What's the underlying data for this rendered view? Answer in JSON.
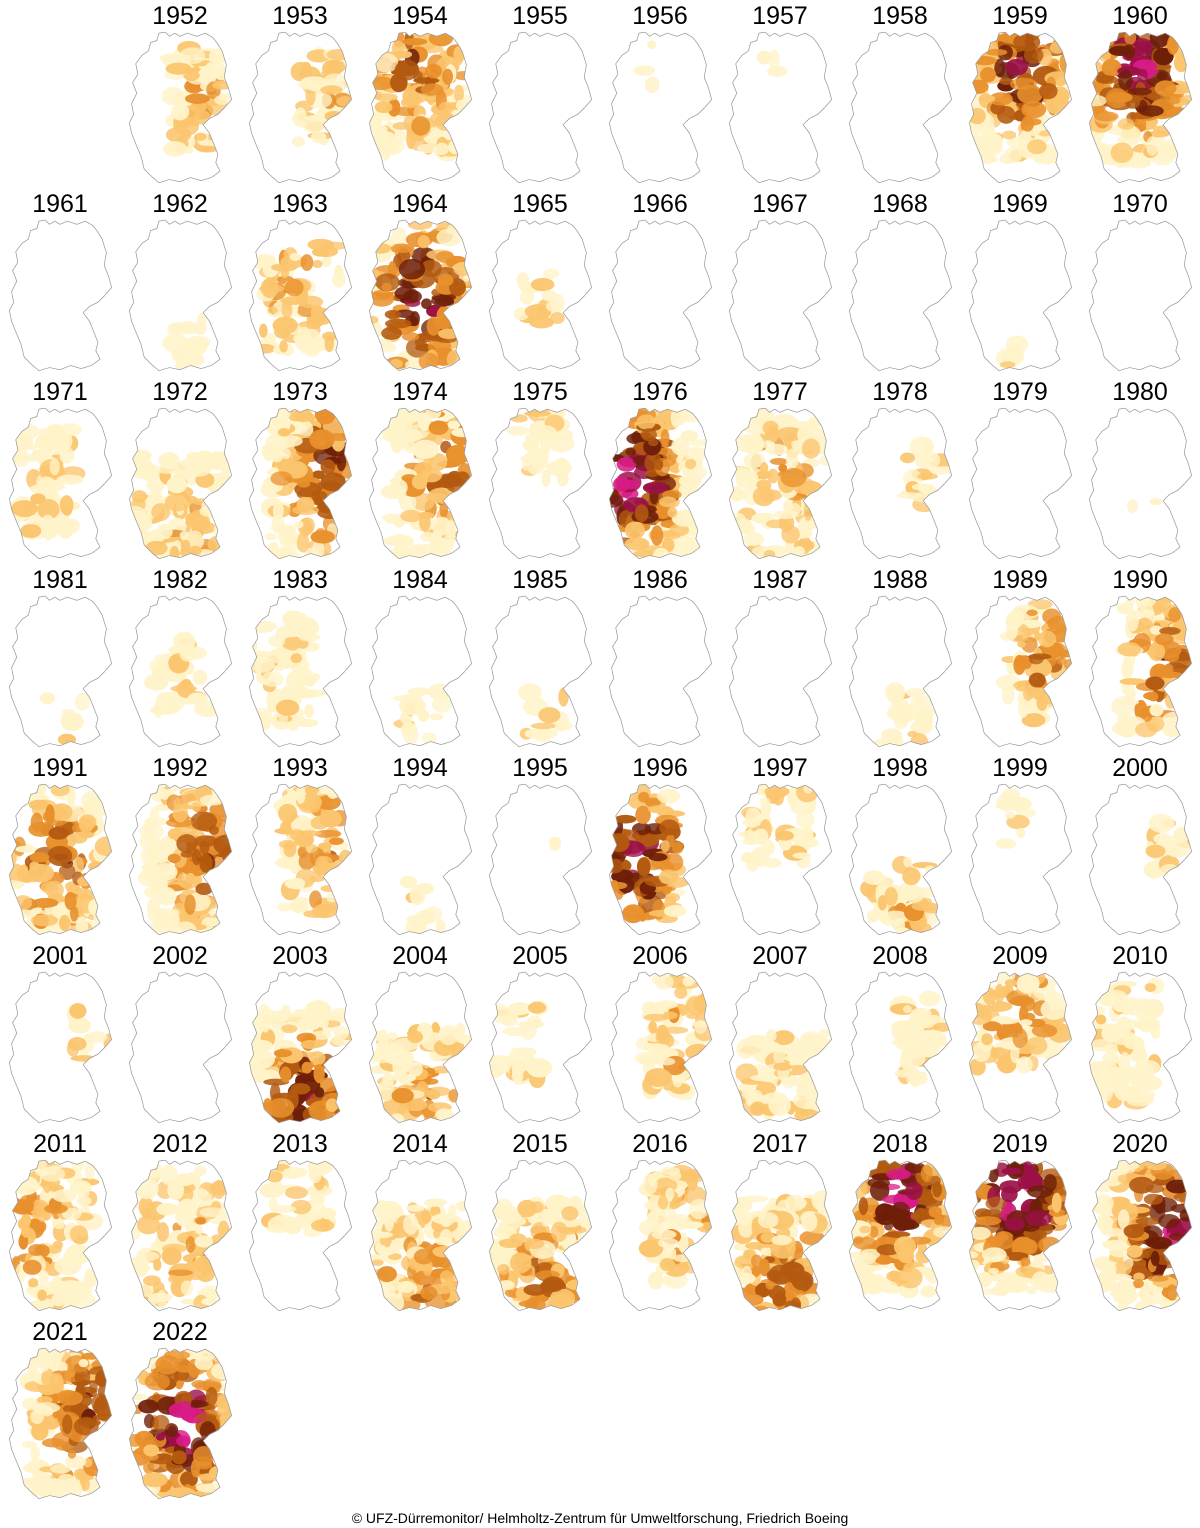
{
  "credit": "© UFZ-Dürremonitor/ Helmholtz-Zentrum für Umweltforschung, Friedrich Boeing",
  "legend_colors": [
    "#fff3c9",
    "#fbc56e",
    "#e8902c",
    "#b35a10",
    "#6e1f08",
    "#9b1046",
    "#d81b86"
  ],
  "maps": [
    {
      "year": "1952",
      "level": 0.22,
      "cover": 0.4,
      "focus": "east"
    },
    {
      "year": "1953",
      "level": 0.14,
      "cover": 0.3,
      "focus": "east"
    },
    {
      "year": "1954",
      "level": 0.45,
      "cover": 0.85,
      "focus": "north"
    },
    {
      "year": "1955",
      "level": 0.0,
      "cover": 0.0,
      "focus": "none"
    },
    {
      "year": "1956",
      "level": 0.01,
      "cover": 0.02,
      "focus": "north"
    },
    {
      "year": "1957",
      "level": 0.01,
      "cover": 0.02,
      "focus": "north"
    },
    {
      "year": "1958",
      "level": 0.0,
      "cover": 0.0,
      "focus": "none"
    },
    {
      "year": "1959",
      "level": 0.62,
      "cover": 0.95,
      "focus": "north"
    },
    {
      "year": "1960",
      "level": 0.78,
      "cover": 1.0,
      "focus": "north"
    },
    {
      "year": "1961",
      "level": 0.0,
      "cover": 0.0,
      "focus": "none"
    },
    {
      "year": "1962",
      "level": 0.03,
      "cover": 0.08,
      "focus": "south"
    },
    {
      "year": "1963",
      "level": 0.25,
      "cover": 0.45,
      "focus": "central"
    },
    {
      "year": "1964",
      "level": 0.7,
      "cover": 0.8,
      "focus": "central"
    },
    {
      "year": "1965",
      "level": 0.08,
      "cover": 0.1,
      "focus": "central"
    },
    {
      "year": "1966",
      "level": 0.0,
      "cover": 0.0,
      "focus": "none"
    },
    {
      "year": "1967",
      "level": 0.0,
      "cover": 0.0,
      "focus": "none"
    },
    {
      "year": "1968",
      "level": 0.0,
      "cover": 0.0,
      "focus": "none"
    },
    {
      "year": "1969",
      "level": 0.01,
      "cover": 0.03,
      "focus": "south"
    },
    {
      "year": "1970",
      "level": 0.0,
      "cover": 0.0,
      "focus": "none"
    },
    {
      "year": "1971",
      "level": 0.1,
      "cover": 0.45,
      "focus": "west"
    },
    {
      "year": "1972",
      "level": 0.22,
      "cover": 0.75,
      "focus": "south"
    },
    {
      "year": "1973",
      "level": 0.55,
      "cover": 0.85,
      "focus": "east"
    },
    {
      "year": "1974",
      "level": 0.4,
      "cover": 0.8,
      "focus": "east"
    },
    {
      "year": "1975",
      "level": 0.04,
      "cover": 0.2,
      "focus": "north"
    },
    {
      "year": "1976",
      "level": 0.85,
      "cover": 1.0,
      "focus": "west"
    },
    {
      "year": "1977",
      "level": 0.28,
      "cover": 0.65,
      "focus": "central"
    },
    {
      "year": "1978",
      "level": 0.1,
      "cover": 0.12,
      "focus": "east"
    },
    {
      "year": "1979",
      "level": 0.0,
      "cover": 0.0,
      "focus": "none"
    },
    {
      "year": "1980",
      "level": 0.0,
      "cover": 0.01,
      "focus": "central"
    },
    {
      "year": "1981",
      "level": 0.01,
      "cover": 0.03,
      "focus": "south"
    },
    {
      "year": "1982",
      "level": 0.03,
      "cover": 0.2,
      "focus": "central"
    },
    {
      "year": "1983",
      "level": 0.05,
      "cover": 0.45,
      "focus": "west"
    },
    {
      "year": "1984",
      "level": 0.04,
      "cover": 0.1,
      "focus": "south"
    },
    {
      "year": "1985",
      "level": 0.03,
      "cover": 0.08,
      "focus": "south"
    },
    {
      "year": "1986",
      "level": 0.0,
      "cover": 0.0,
      "focus": "none"
    },
    {
      "year": "1987",
      "level": 0.0,
      "cover": 0.0,
      "focus": "none"
    },
    {
      "year": "1988",
      "level": 0.03,
      "cover": 0.12,
      "focus": "south"
    },
    {
      "year": "1989",
      "level": 0.38,
      "cover": 0.5,
      "focus": "east"
    },
    {
      "year": "1990",
      "level": 0.45,
      "cover": 0.6,
      "focus": "east"
    },
    {
      "year": "1991",
      "level": 0.45,
      "cover": 0.8,
      "focus": "central"
    },
    {
      "year": "1992",
      "level": 0.5,
      "cover": 0.85,
      "focus": "east"
    },
    {
      "year": "1993",
      "level": 0.3,
      "cover": 0.55,
      "focus": "east"
    },
    {
      "year": "1994",
      "level": 0.02,
      "cover": 0.08,
      "focus": "south"
    },
    {
      "year": "1995",
      "level": 0.0,
      "cover": 0.01,
      "focus": "none"
    },
    {
      "year": "1996",
      "level": 0.75,
      "cover": 0.55,
      "focus": "west"
    },
    {
      "year": "1997",
      "level": 0.15,
      "cover": 0.3,
      "focus": "north"
    },
    {
      "year": "1998",
      "level": 0.2,
      "cover": 0.35,
      "focus": "south"
    },
    {
      "year": "1999",
      "level": 0.02,
      "cover": 0.06,
      "focus": "north"
    },
    {
      "year": "2000",
      "level": 0.05,
      "cover": 0.1,
      "focus": "east"
    },
    {
      "year": "2001",
      "level": 0.05,
      "cover": 0.06,
      "focus": "east"
    },
    {
      "year": "2002",
      "level": 0.0,
      "cover": 0.0,
      "focus": "none"
    },
    {
      "year": "2003",
      "level": 0.6,
      "cover": 0.85,
      "focus": "south"
    },
    {
      "year": "2004",
      "level": 0.3,
      "cover": 0.6,
      "focus": "south"
    },
    {
      "year": "2005",
      "level": 0.12,
      "cover": 0.2,
      "focus": "west"
    },
    {
      "year": "2006",
      "level": 0.22,
      "cover": 0.5,
      "focus": "east"
    },
    {
      "year": "2007",
      "level": 0.12,
      "cover": 0.55,
      "focus": "south"
    },
    {
      "year": "2008",
      "level": 0.06,
      "cover": 0.25,
      "focus": "east"
    },
    {
      "year": "2009",
      "level": 0.28,
      "cover": 0.55,
      "focus": "north"
    },
    {
      "year": "2010",
      "level": 0.02,
      "cover": 0.5,
      "focus": "west"
    },
    {
      "year": "2011",
      "level": 0.32,
      "cover": 0.8,
      "focus": "west"
    },
    {
      "year": "2012",
      "level": 0.22,
      "cover": 0.65,
      "focus": "central"
    },
    {
      "year": "2013",
      "level": 0.05,
      "cover": 0.25,
      "focus": "north"
    },
    {
      "year": "2014",
      "level": 0.35,
      "cover": 0.8,
      "focus": "south"
    },
    {
      "year": "2015",
      "level": 0.4,
      "cover": 0.8,
      "focus": "south"
    },
    {
      "year": "2016",
      "level": 0.22,
      "cover": 0.45,
      "focus": "east"
    },
    {
      "year": "2017",
      "level": 0.45,
      "cover": 0.85,
      "focus": "south"
    },
    {
      "year": "2018",
      "level": 0.82,
      "cover": 1.0,
      "focus": "north"
    },
    {
      "year": "2019",
      "level": 0.92,
      "cover": 1.0,
      "focus": "north"
    },
    {
      "year": "2020",
      "level": 0.8,
      "cover": 1.0,
      "focus": "east"
    },
    {
      "year": "2021",
      "level": 0.55,
      "cover": 0.85,
      "focus": "east"
    },
    {
      "year": "2022",
      "level": 0.85,
      "cover": 1.0,
      "focus": "central"
    }
  ]
}
